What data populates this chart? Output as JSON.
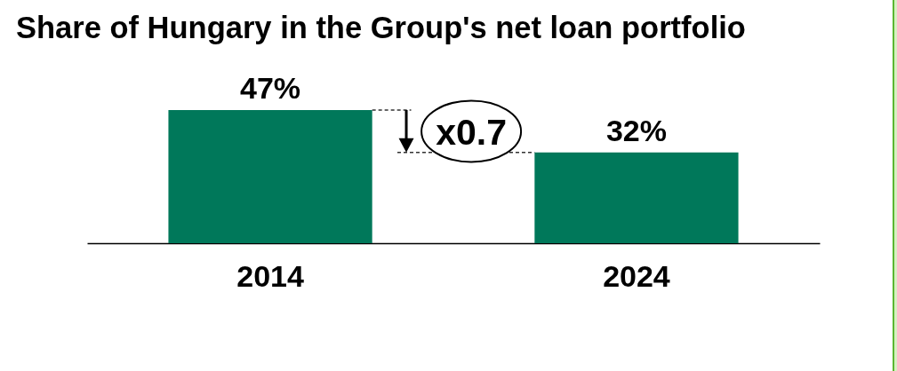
{
  "chart_data": {
    "type": "bar",
    "title": "Share of Hungary in the Group's net loan portfolio",
    "categories": [
      "2014",
      "2024"
    ],
    "values": [
      47,
      32
    ],
    "value_labels": [
      "47%",
      "32%"
    ],
    "color": "#00785a",
    "annotations": [
      "x0.7"
    ]
  }
}
